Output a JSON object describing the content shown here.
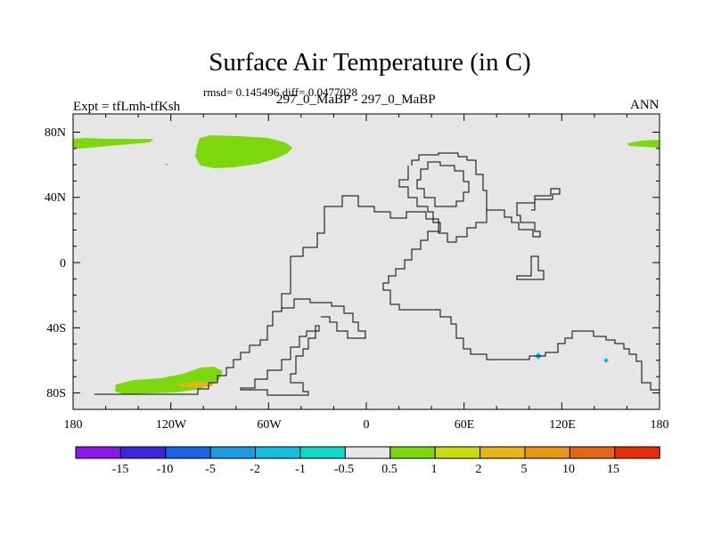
{
  "title": "Surface Air Temperature (in C)",
  "subtitle": "rmsd= 0.145496 diff= 0.0477028",
  "experiment": "Expt = tfLmh-tfKsh",
  "comparison": "297_0_MaBP - 297_0_MaBP",
  "period": "ANN",
  "lon_ticks": [
    "180",
    "120W",
    "60W",
    "0",
    "60E",
    "120E",
    "180"
  ],
  "lat_ticks": [
    "80N",
    "40N",
    "0",
    "40S",
    "80S"
  ],
  "colorbar": {
    "colors": [
      "#8a18e6",
      "#3a28d8",
      "#1a64e6",
      "#1a9ae0",
      "#10bee0",
      "#10d8c8",
      "#e6e6e6",
      "#7cd80c",
      "#c8dc10",
      "#e6b414",
      "#e69614",
      "#e66414",
      "#e62d0a"
    ],
    "labels": [
      "-15",
      "-10",
      "-5",
      "-2",
      "-1",
      "-0.5",
      "0.5",
      "1",
      "2",
      "5",
      "10",
      "15"
    ]
  },
  "colors": {
    "ocean": "#e6e6e6",
    "warm_1": "#7cd80c",
    "warm_5": "#e6b414",
    "cool_1": "#10bee0"
  }
}
